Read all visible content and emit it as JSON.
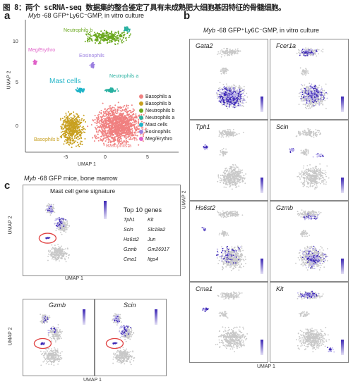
{
  "caption": "图 8：两个 scRNA-seq 数据集的整合鉴定了具有未成熟肥大细胞基因特征的骨髓细胞。",
  "panel_a": {
    "label": "a",
    "title_gene": "Myb",
    "title_rest": " -68 GFP⁺Ly6C⁻GMP, in vitro culture",
    "xlabel": "UMAP 1",
    "ylabel": "UMAP 2",
    "xticks": [
      "-5",
      "0",
      "5"
    ],
    "yticks": [
      "10",
      "5",
      "0"
    ],
    "cluster_labels": {
      "neutrophils_b": "Neutrophils b",
      "meg": "Meg/Erythro",
      "eosinophils": "Eosinophils",
      "mast": "Mast cells",
      "neutrophils_a": "Neutrophils a",
      "basophils_b": "Basophils b",
      "basophils_a": "Basophils a"
    },
    "legend": [
      {
        "label": "Basophils a",
        "color": "#f08080"
      },
      {
        "label": "Basophils b",
        "color": "#c8a020"
      },
      {
        "label": "Neutrophils b",
        "color": "#6aa81e"
      },
      {
        "label": "Neutrophils a",
        "color": "#28b0a0"
      },
      {
        "label": "Mast cells",
        "color": "#20b4c8"
      },
      {
        "label": "Eosinophils",
        "color": "#9b7fe0"
      },
      {
        "label": "Meg/Erythro",
        "color": "#e060c8"
      }
    ]
  },
  "panel_b": {
    "label": "b",
    "title_gene": "Myb",
    "title_rest": " -68 GFP⁺Ly6C⁻GMP, in vitro culture",
    "xlabel": "UMAP 1",
    "ylabel": "UMAP 2",
    "genes": [
      "Gata2",
      "Fcer1a",
      "Tph1",
      "Scin",
      "Hs6st2",
      "Gzmb",
      "Cma1",
      "Kit"
    ]
  },
  "panel_c": {
    "label": "c",
    "title_gene": "Myb",
    "title_rest": " -68 GFP mice, bone marrow",
    "signature_title": "Mast cell gene signature",
    "top_genes_title": "Top 10 genes",
    "top_genes": [
      [
        "Tph1",
        "Kit"
      ],
      [
        "Scin",
        "Slc18a2"
      ],
      [
        "Hs6st2",
        "Jun"
      ],
      [
        "Gzmb",
        "Gm26917"
      ],
      [
        "Cma1",
        "Itgs4"
      ]
    ],
    "xlabel": "UMAP 1",
    "ylabel": "UMAP 2",
    "bottom_genes": [
      "Gzmb",
      "Scin"
    ]
  },
  "colors": {
    "grey_cell": "#c8c8c8",
    "purple_high": "#3b26b5",
    "purple_low": "#b9b0ec",
    "circle": "#e04040"
  }
}
